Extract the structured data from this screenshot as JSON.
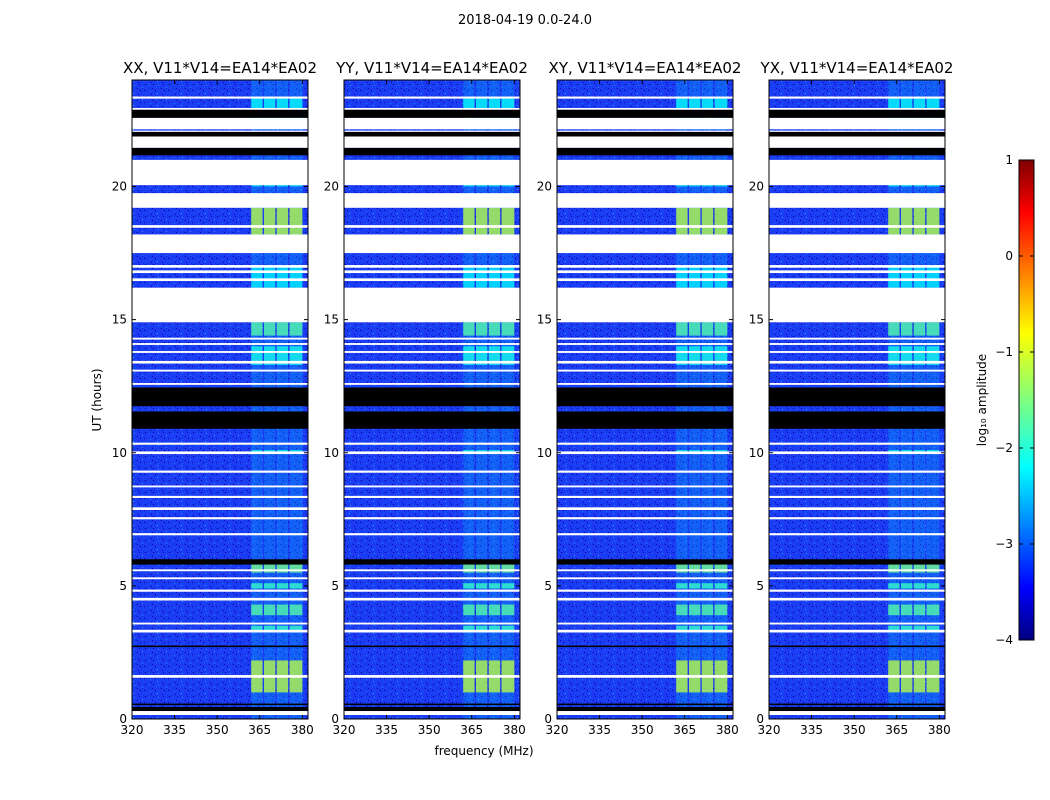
{
  "figure": {
    "title": "2018-04-19 0.0-24.0"
  },
  "chart_data": {
    "type": "heatmap",
    "title": "2018-04-19 0.0-24.0",
    "xlabel": "frequency (MHz)",
    "ylabel": "UT (hours)",
    "xlim": [
      320,
      382
    ],
    "ylim": [
      0,
      24
    ],
    "xticks": [
      320,
      335,
      350,
      365,
      380
    ],
    "yticks": [
      0,
      5,
      10,
      15,
      20
    ],
    "panels": [
      {
        "title": "XX, V11*V14=EA14*EA02"
      },
      {
        "title": "YY, V11*V14=EA14*EA02"
      },
      {
        "title": "XY, V11*V14=EA14*EA02"
      },
      {
        "title": "YX, V11*V14=EA14*EA02"
      }
    ],
    "colorbar": {
      "label": "log₁₀ amplitude",
      "range": [
        -4,
        1
      ],
      "ticks": [
        1,
        0,
        -1,
        -2,
        -3,
        -4
      ],
      "tick_labels": [
        "1",
        "0",
        "−1",
        "−2",
        "−3",
        "−4"
      ],
      "colormap": "jet"
    },
    "rfi_band_mhz": [
      362,
      381
    ],
    "rfi_channels_mhz": [
      [
        362,
        366
      ],
      [
        366.5,
        370.5
      ],
      [
        371,
        375
      ],
      [
        375.5,
        380
      ]
    ],
    "flagged_white_hours": [
      [
        0.15,
        0.3
      ],
      [
        1.55,
        1.65
      ],
      [
        3.25,
        3.35
      ],
      [
        3.55,
        3.62
      ],
      [
        4.45,
        4.55
      ],
      [
        4.78,
        4.86
      ],
      [
        5.25,
        5.32
      ],
      [
        5.55,
        5.62
      ],
      [
        6.9,
        6.98
      ],
      [
        7.5,
        7.58
      ],
      [
        7.85,
        7.95
      ],
      [
        8.3,
        8.38
      ],
      [
        8.7,
        8.77
      ],
      [
        9.25,
        9.33
      ],
      [
        9.95,
        10.05
      ],
      [
        10.3,
        10.38
      ],
      [
        12.25,
        12.32
      ],
      [
        12.55,
        12.62
      ],
      [
        13.05,
        13.12
      ],
      [
        13.35,
        13.45
      ],
      [
        13.75,
        13.82
      ],
      [
        14.05,
        14.12
      ],
      [
        14.25,
        14.32
      ],
      [
        14.9,
        16.2
      ],
      [
        16.45,
        16.55
      ],
      [
        16.75,
        16.85
      ],
      [
        16.95,
        17.05
      ],
      [
        17.5,
        18.2
      ],
      [
        18.45,
        18.55
      ],
      [
        19.2,
        19.75
      ],
      [
        20.05,
        21.0
      ],
      [
        21.45,
        21.88
      ],
      [
        22.05,
        22.1
      ],
      [
        22.15,
        22.58
      ],
      [
        22.88,
        22.95
      ],
      [
        23.3,
        23.38
      ]
    ],
    "flagged_black_hours": [
      [
        0.3,
        0.45
      ],
      [
        0.52,
        0.58
      ],
      [
        2.7,
        2.76
      ],
      [
        5.8,
        6.0
      ],
      [
        10.9,
        11.55
      ],
      [
        11.75,
        12.45
      ],
      [
        21.17,
        21.45
      ],
      [
        21.88,
        22.05
      ],
      [
        22.58,
        22.88
      ]
    ],
    "rfi_bright_hours": [
      [
        1.0,
        2.2,
        -1.0
      ],
      [
        3.25,
        3.5,
        -1.8
      ],
      [
        3.9,
        4.3,
        -1.6
      ],
      [
        4.9,
        5.1,
        -1.8
      ],
      [
        5.5,
        5.9,
        -1.4
      ],
      [
        10.0,
        10.1,
        -2.0
      ],
      [
        13.3,
        14.0,
        -2.0
      ],
      [
        14.4,
        14.9,
        -1.6
      ],
      [
        16.2,
        17.0,
        -2.2
      ],
      [
        18.2,
        19.2,
        -1.0
      ],
      [
        20.0,
        20.3,
        -2.2
      ],
      [
        22.3,
        22.6,
        -2.2
      ],
      [
        22.95,
        23.3,
        -2.1
      ]
    ]
  }
}
